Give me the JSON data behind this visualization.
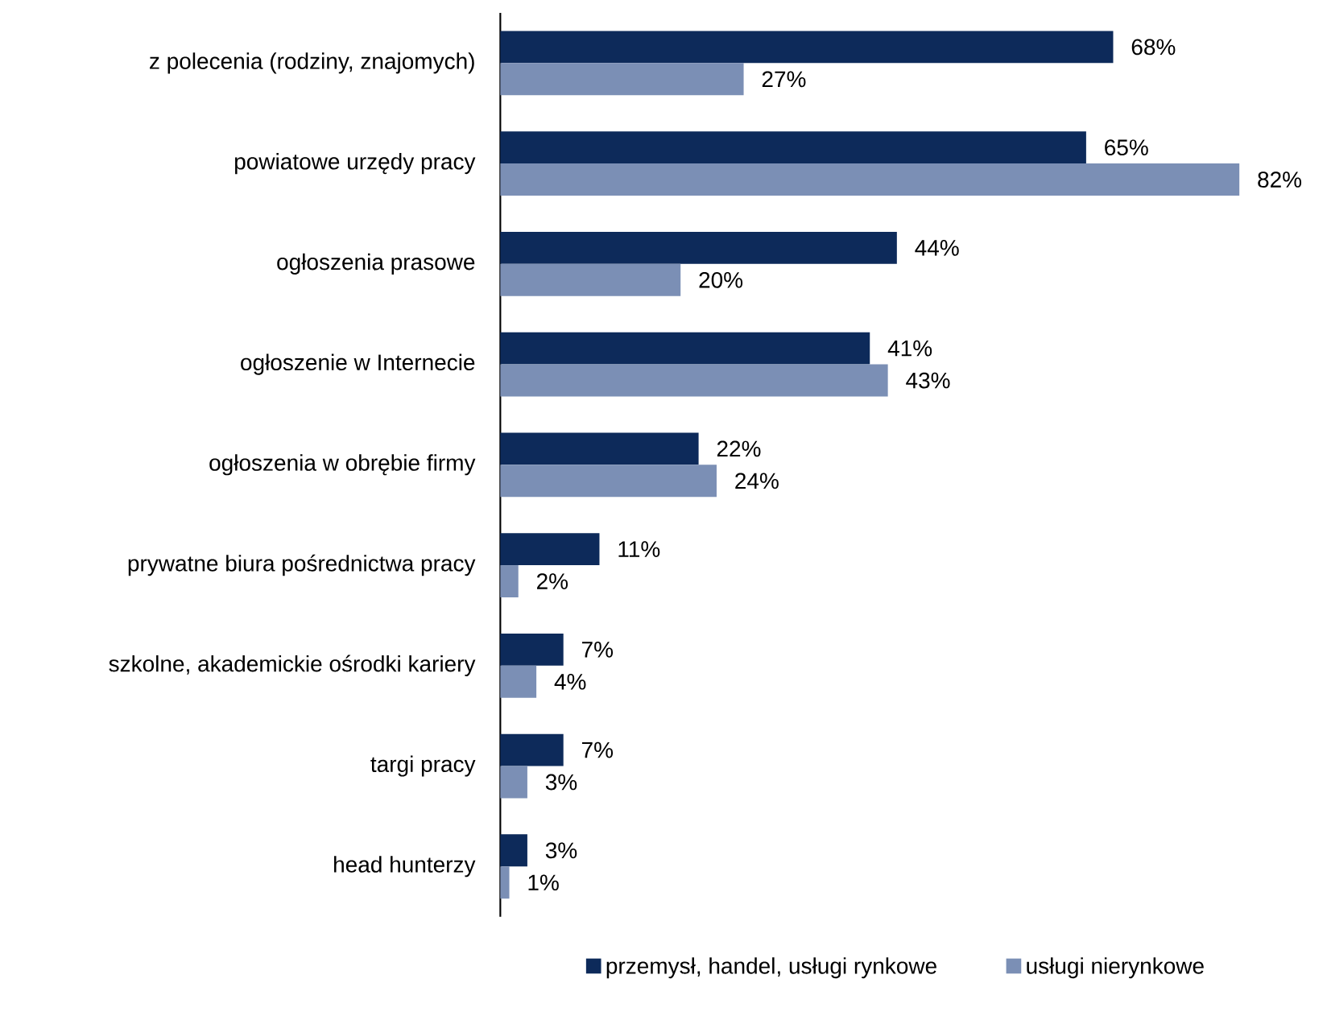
{
  "chart_data": {
    "type": "bar",
    "orientation": "horizontal",
    "categories": [
      "z polecenia (rodziny, znajomych)",
      "powiatowe urzędy pracy",
      "ogłoszenia prasowe",
      "ogłoszenie w Internecie",
      "ogłoszenia w obrębie firmy",
      "prywatne biura pośrednictwa pracy",
      "szkolne, akademickie ośrodki kariery",
      "targi pracy",
      "head hunterzy"
    ],
    "series": [
      {
        "name": "przemysł, handel, usługi rynkowe",
        "color": "#0d2a5a",
        "values": [
          68,
          65,
          44,
          41,
          22,
          11,
          7,
          7,
          3
        ],
        "value_labels": [
          "68%",
          "65%",
          "44%",
          "41%",
          "22%",
          "11%",
          "7%",
          "7%",
          "3%"
        ]
      },
      {
        "name": "usługi nierynkowe",
        "color": "#7b8fb5",
        "values": [
          27,
          82,
          20,
          43,
          24,
          2,
          4,
          3,
          1
        ],
        "value_labels": [
          "27%",
          "82%",
          "20%",
          "43%",
          "24%",
          "2%",
          "4%",
          "3%",
          "1%"
        ]
      }
    ],
    "legend": "bottom",
    "tick_labels": "y"
  }
}
